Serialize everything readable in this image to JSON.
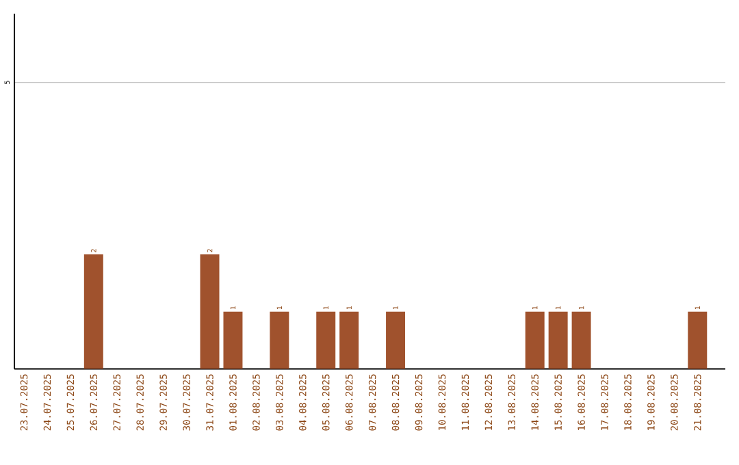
{
  "chart_data": {
    "type": "bar",
    "categories": [
      "23.07.2025",
      "24.07.2025",
      "25.07.2025",
      "26.07.2025",
      "27.07.2025",
      "28.07.2025",
      "29.07.2025",
      "30.07.2025",
      "31.07.2025",
      "01.08.2025",
      "02.08.2025",
      "03.08.2025",
      "04.08.2025",
      "05.08.2025",
      "06.08.2025",
      "07.08.2025",
      "08.08.2025",
      "09.08.2025",
      "10.08.2025",
      "11.08.2025",
      "12.08.2025",
      "13.08.2025",
      "14.08.2025",
      "15.08.2025",
      "16.08.2025",
      "17.08.2025",
      "18.08.2025",
      "19.08.2025",
      "20.08.2025",
      "21.08.2025"
    ],
    "values": [
      0,
      0,
      0,
      2,
      0,
      0,
      0,
      0,
      2,
      1,
      0,
      1,
      0,
      1,
      1,
      0,
      1,
      0,
      0,
      0,
      0,
      0,
      1,
      1,
      1,
      0,
      0,
      0,
      0,
      1
    ],
    "value_labels": [
      null,
      null,
      null,
      "2",
      null,
      null,
      null,
      null,
      "2",
      "1",
      null,
      "1",
      null,
      "1",
      "1",
      null,
      "1",
      null,
      null,
      null,
      null,
      null,
      "1",
      "1",
      "1",
      null,
      null,
      null,
      null,
      "1"
    ],
    "color": "#a0522d",
    "ylim": [
      0,
      6.2
    ],
    "yticks": [
      5
    ],
    "grid": "y"
  }
}
